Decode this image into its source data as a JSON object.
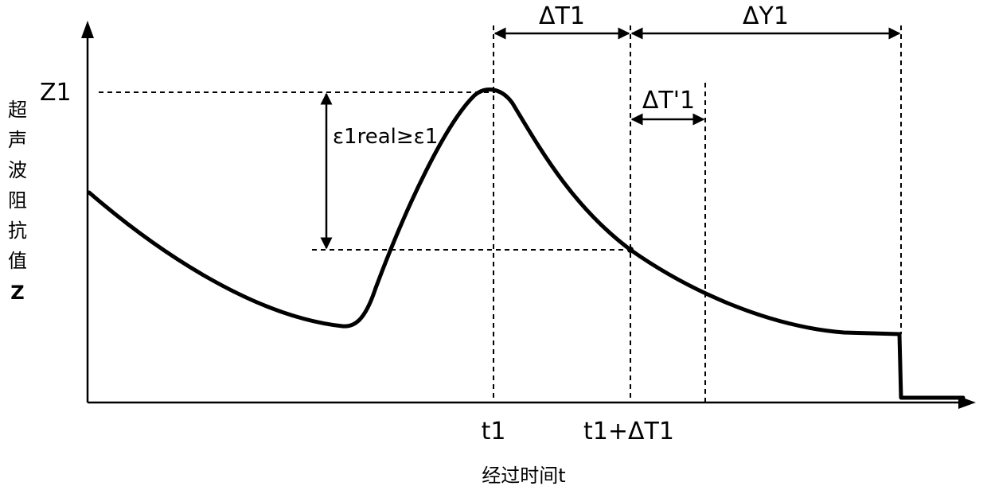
{
  "diagram": {
    "y_axis_label_chars": [
      "超",
      "声",
      "波",
      "阻",
      "抗",
      "值",
      "Z"
    ],
    "x_axis_label": "经过时间t",
    "level_label": "Z1",
    "tick_t1": "t1",
    "tick_t1_plus": "t1+ΔT1",
    "interval_dt1": "ΔT1",
    "interval_dy1": "ΔY1",
    "interval_dt1_prime": "ΔT'1",
    "condition_label": "ε1real≥ε1"
  }
}
